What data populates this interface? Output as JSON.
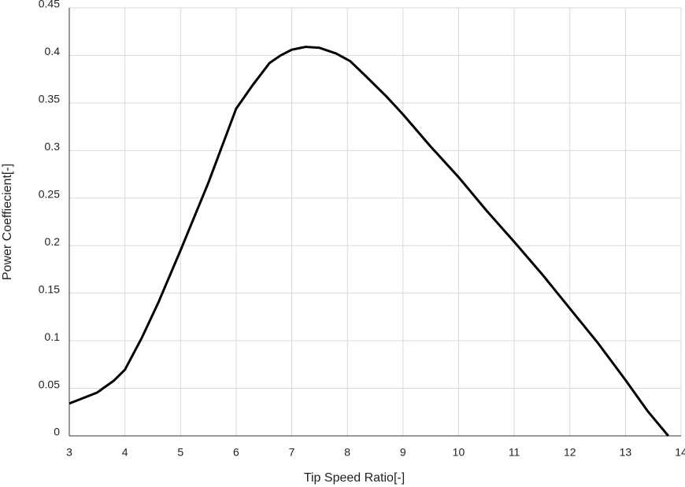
{
  "chart_data": {
    "type": "line",
    "x_label": "Tip Speed Ratio[-]",
    "y_label": "Power Coeffiecient[-]",
    "x": [
      3,
      3.5,
      3.8,
      4,
      4.3,
      4.6,
      5,
      5.5,
      6,
      6.3,
      6.6,
      6.8,
      7,
      7.25,
      7.5,
      7.8,
      8.05,
      8.3,
      8.7,
      9,
      9.5,
      10,
      10.5,
      11,
      11.5,
      12,
      12.5,
      13,
      13.4,
      13.77
    ],
    "series": [
      {
        "name": "Power Coefficient",
        "color": "#000000",
        "values": [
          0.034,
          0.0455,
          0.058,
          0.0695,
          0.1026,
          0.14,
          0.195,
          0.266,
          0.344,
          0.369,
          0.392,
          0.4,
          0.406,
          0.409,
          0.408,
          0.402,
          0.394,
          0.38,
          0.357,
          0.338,
          0.304,
          0.272,
          0.237,
          0.204,
          0.17,
          0.134,
          0.098,
          0.0587,
          0.026,
          0
        ]
      }
    ],
    "xlim": [
      3,
      14
    ],
    "ylim": [
      0,
      0.45
    ],
    "xticks": [
      3,
      4,
      5,
      6,
      7,
      8,
      9,
      10,
      11,
      12,
      13,
      14
    ],
    "yticks": [
      0,
      0.05,
      0.1,
      0.15,
      0.2,
      0.25,
      0.3,
      0.35,
      0.4,
      0.45
    ],
    "grid": true
  }
}
